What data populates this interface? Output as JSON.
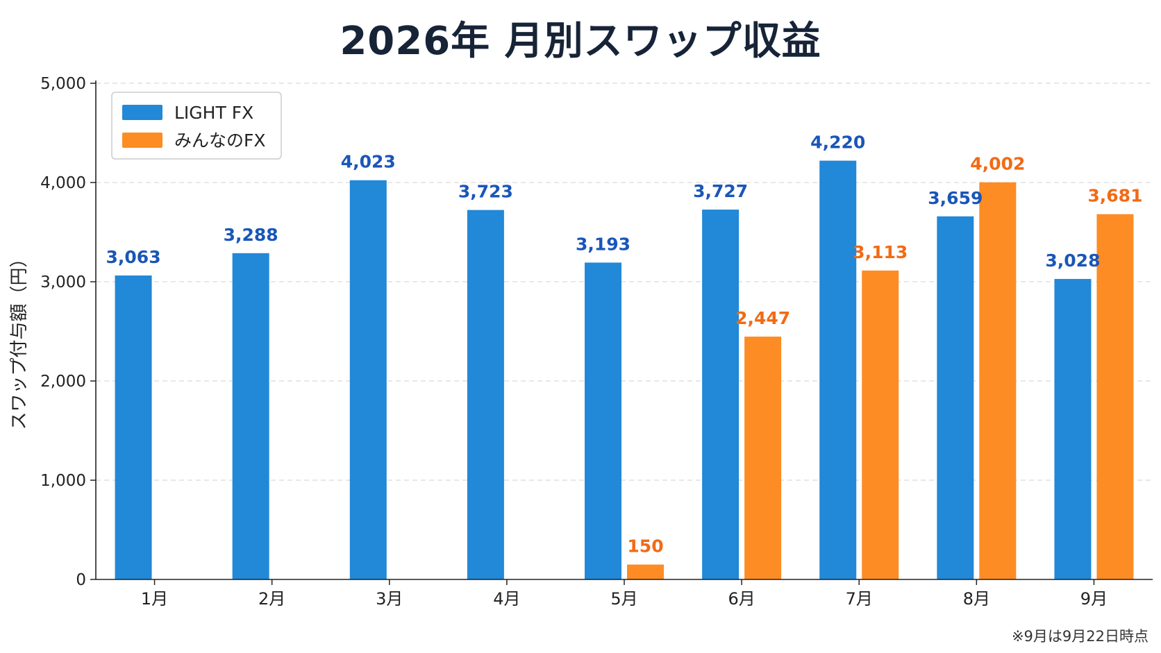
{
  "title": "2026年 月別スワップ収益",
  "note": "※9月は9月22日時点",
  "chart_data": {
    "type": "bar",
    "title": "2026年 月別スワップ収益",
    "xlabel": "",
    "ylabel": "スワップ付与額（円）",
    "ylim": [
      0,
      5000
    ],
    "yticks": [
      0,
      1000,
      2000,
      3000,
      4000,
      5000
    ],
    "ytick_labels": [
      "0",
      "1,000",
      "2,000",
      "3,000",
      "4,000",
      "5,000"
    ],
    "categories": [
      "1月",
      "2月",
      "3月",
      "4月",
      "5月",
      "6月",
      "7月",
      "8月",
      "9月"
    ],
    "grid": true,
    "legend_position": "top-left",
    "series": [
      {
        "name": "LIGHT FX",
        "color": "#2288d8",
        "label_color": "#1a56b8",
        "values": [
          3063,
          3288,
          4023,
          3723,
          3193,
          3727,
          4220,
          3659,
          3028
        ],
        "labels": [
          "3,063",
          "3,288",
          "4,023",
          "3,723",
          "3,193",
          "3,727",
          "4,220",
          "3,659",
          "3,028"
        ]
      },
      {
        "name": "みんなのFX",
        "color": "#fd8c24",
        "label_color": "#f26a14",
        "values": [
          null,
          null,
          null,
          null,
          150,
          2447,
          3113,
          4002,
          3681
        ],
        "labels": [
          null,
          null,
          null,
          null,
          "150",
          "2,447",
          "3,113",
          "4,002",
          "3,681"
        ]
      }
    ]
  }
}
